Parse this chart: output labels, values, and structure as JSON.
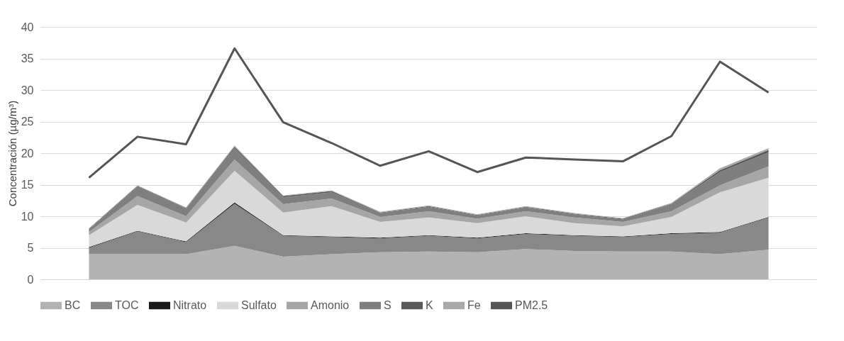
{
  "chart_data": {
    "type": "area",
    "stacked": true,
    "ylabel": "Concentración (µg/m³)",
    "categories": [
      null,
      null,
      null,
      null,
      null,
      null,
      null,
      null,
      null,
      null,
      null,
      null,
      null,
      null,
      null
    ],
    "series": [
      {
        "name": "BC",
        "color": "#b3b3b3",
        "values": [
          4.0,
          4.0,
          4.0,
          5.3,
          3.6,
          4.0,
          4.3,
          4.4,
          4.3,
          4.8,
          4.5,
          4.4,
          4.4,
          4.0,
          4.7
        ]
      },
      {
        "name": "TOC",
        "color": "#888888",
        "values": [
          1.0,
          3.6,
          1.9,
          6.7,
          3.3,
          2.7,
          2.2,
          2.5,
          2.2,
          2.4,
          2.4,
          2.3,
          2.8,
          3.4,
          5.1
        ]
      },
      {
        "name": "Nitrato",
        "color": "#1a1a1a",
        "values": [
          0.1,
          0.1,
          0.1,
          0.2,
          0.1,
          0.1,
          0.1,
          0.1,
          0.1,
          0.1,
          0.1,
          0.1,
          0.1,
          0.1,
          0.1
        ]
      },
      {
        "name": "Sulfato",
        "color": "#d9d9d9",
        "values": [
          1.9,
          4.1,
          3.0,
          5.0,
          3.6,
          4.8,
          2.5,
          2.8,
          2.3,
          2.7,
          1.9,
          1.6,
          2.6,
          6.3,
          6.2
        ]
      },
      {
        "name": "Amonio",
        "color": "#a6a6a6",
        "values": [
          0.5,
          1.4,
          1.0,
          1.8,
          1.3,
          1.2,
          0.8,
          1.0,
          0.7,
          0.8,
          0.9,
          0.7,
          0.9,
          1.1,
          1.8
        ]
      },
      {
        "name": "S",
        "color": "#7f7f7f",
        "values": [
          0.4,
          1.5,
          1.2,
          1.8,
          1.1,
          1.0,
          0.6,
          0.7,
          0.5,
          0.6,
          0.5,
          0.4,
          1.1,
          2.1,
          2.2
        ]
      },
      {
        "name": "K",
        "color": "#5a5a5a",
        "values": [
          0.1,
          0.1,
          0.1,
          0.2,
          0.2,
          0.2,
          0.1,
          0.1,
          0.1,
          0.1,
          0.1,
          0.1,
          0.1,
          0.3,
          0.4
        ]
      },
      {
        "name": "Fe",
        "color": "#a9a9a9",
        "values": [
          0.1,
          0.1,
          0.1,
          0.2,
          0.1,
          0.1,
          0.1,
          0.1,
          0.1,
          0.1,
          0.1,
          0.1,
          0.1,
          0.3,
          0.3
        ]
      },
      {
        "name": "PM2.5",
        "type": "line",
        "color": "#555555",
        "values": [
          16.1,
          22.6,
          21.4,
          36.6,
          24.9,
          21.6,
          18.0,
          20.3,
          17.0,
          19.3,
          19.0,
          18.7,
          22.7,
          34.5,
          29.6
        ]
      }
    ],
    "ylim": [
      0,
      40
    ],
    "yticks": [
      0,
      5,
      10,
      15,
      20,
      25,
      30,
      35,
      40
    ],
    "grid": "y",
    "legend": "bottom",
    "tick_labels": "y",
    "marker": "none"
  }
}
